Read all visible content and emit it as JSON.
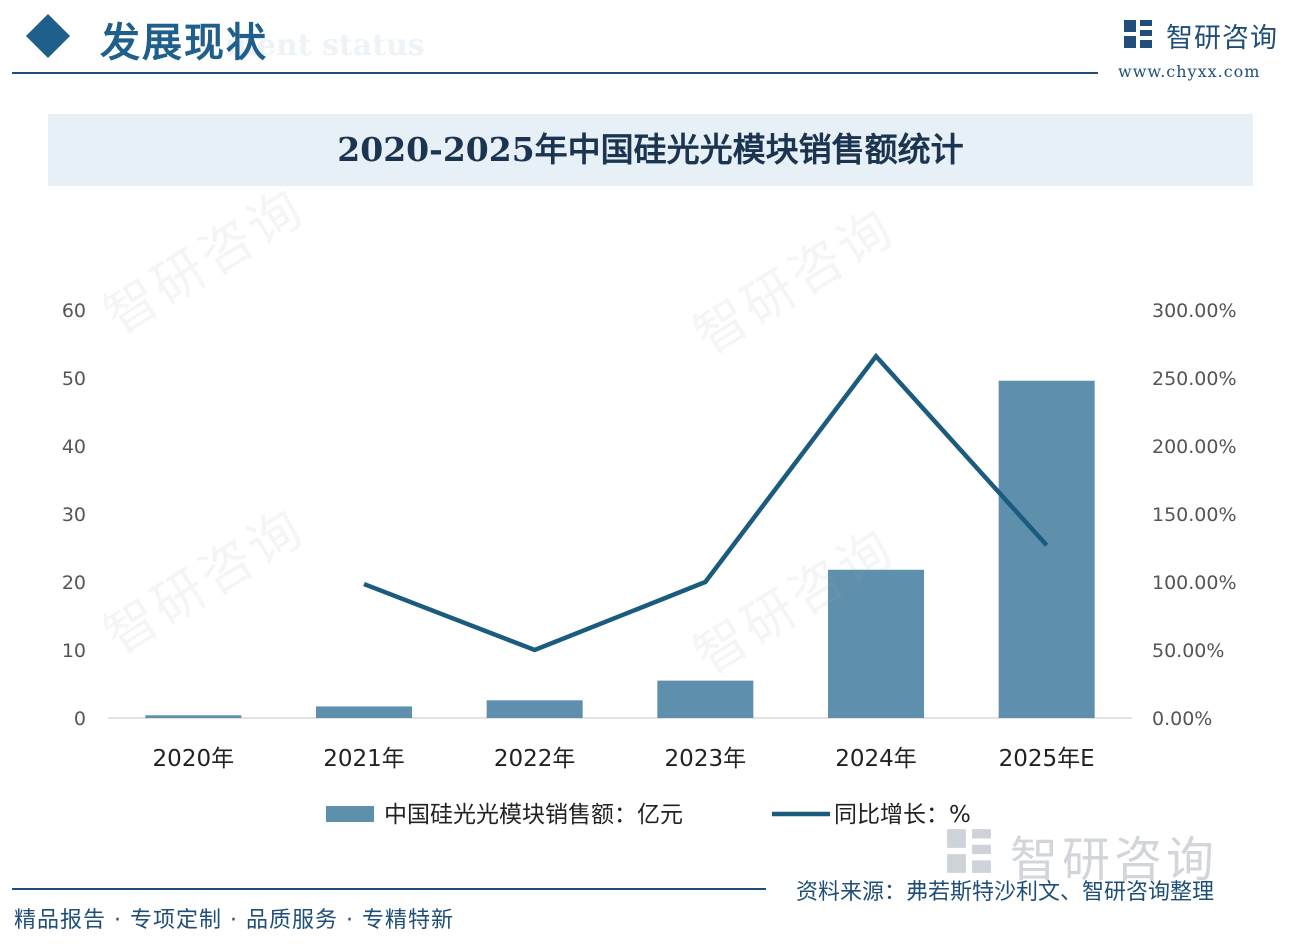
{
  "header": {
    "title": "发展现状",
    "subtitle": "ment status",
    "brand_name": "智研咨询",
    "brand_url": "www.chyxx.com"
  },
  "footer": {
    "slogan": "精品报告 · 专项定制 · 品质服务 · 专精特新",
    "source": "资料来源：弗若斯特沙利文、智研咨询整理",
    "watermark_brand": "智研咨询"
  },
  "watermark_text": "智研咨询",
  "colors": {
    "bar": "#5e8fac",
    "line": "#1b5b7e",
    "brand": "#1f4f78",
    "title_band": "#e7eff7"
  },
  "chart_data": {
    "type": "bar",
    "title": "2020-2025年中国硅光光模块销售额统计",
    "categories": [
      "2020年",
      "2021年",
      "2022年",
      "2023年",
      "2024年",
      "2025年E"
    ],
    "series": [
      {
        "name": "中国硅光光模块销售额：亿元",
        "type": "bar",
        "axis": "left",
        "values": [
          0.4,
          1.7,
          2.6,
          5.5,
          21.8,
          49.6
        ]
      },
      {
        "name": "同比增长：%",
        "type": "line",
        "axis": "right",
        "values": [
          null,
          98.5,
          50.0,
          100.0,
          266.0,
          127.0
        ]
      }
    ],
    "y_left": {
      "ylim": [
        0,
        60
      ],
      "ticks": [
        "0",
        "10",
        "20",
        "30",
        "40",
        "50",
        "60"
      ]
    },
    "y_right": {
      "ylim": [
        0,
        300
      ],
      "ticks": [
        "0.00%",
        "50.00%",
        "100.00%",
        "150.00%",
        "200.00%",
        "250.00%",
        "300.00%"
      ]
    },
    "grid": false,
    "legend_position": "bottom"
  }
}
